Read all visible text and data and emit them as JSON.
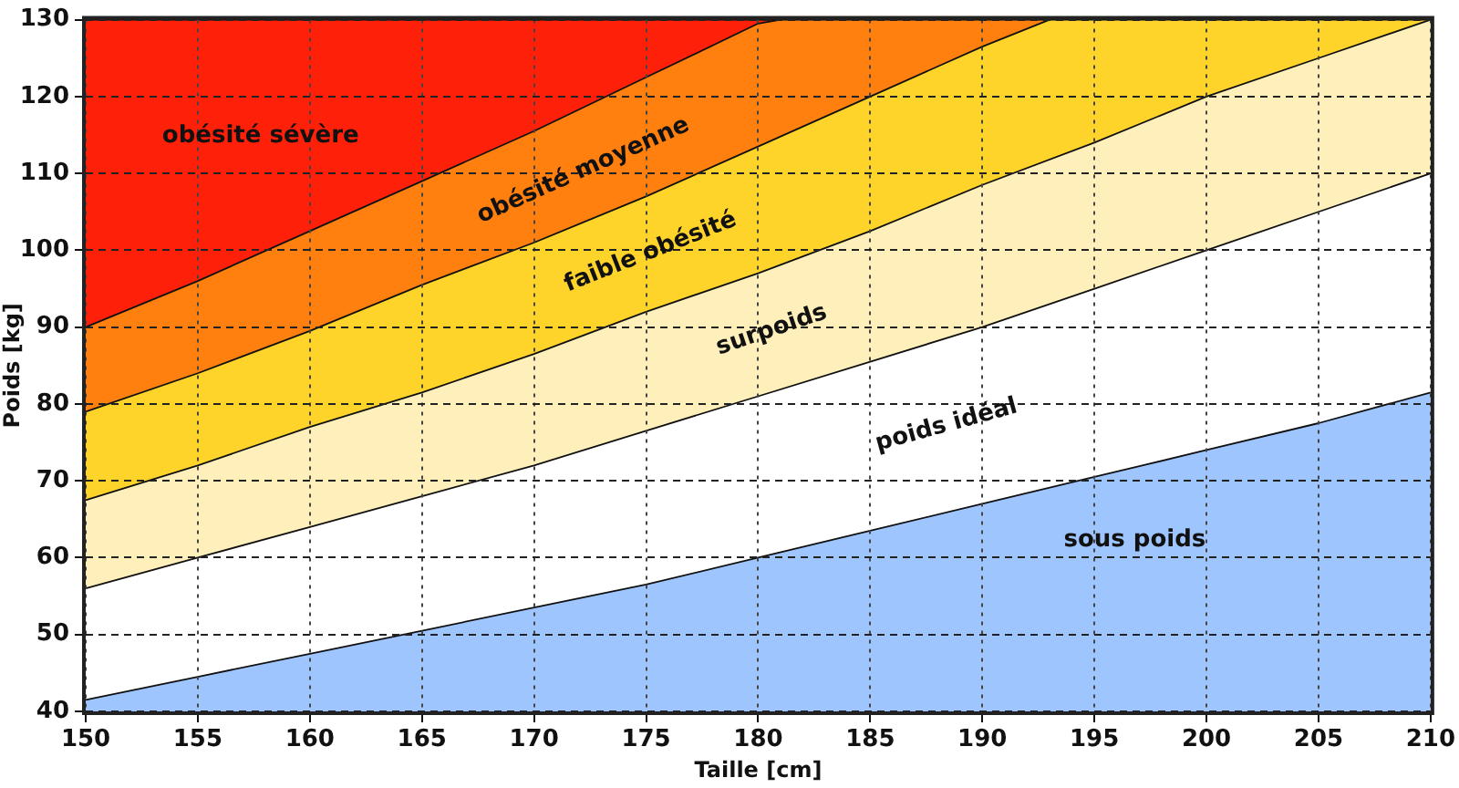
{
  "chart_data": {
    "type": "area",
    "xlabel": "Taille [cm]",
    "ylabel": "Poids [kg]",
    "xlim": [
      150,
      210
    ],
    "ylim": [
      40,
      130
    ],
    "xticks": [
      150,
      155,
      160,
      165,
      170,
      175,
      180,
      185,
      190,
      195,
      200,
      205,
      210
    ],
    "yticks": [
      40,
      50,
      60,
      70,
      80,
      90,
      100,
      110,
      120,
      130
    ],
    "grid": true,
    "series": [
      {
        "name": "sous poids",
        "color": "#9fc5ff",
        "x": [
          150,
          155,
          160,
          165,
          170,
          175,
          180,
          185,
          190,
          195,
          200,
          205,
          210
        ],
        "values": [
          41.5,
          44.5,
          47.5,
          50.5,
          53.5,
          56.5,
          60,
          63.5,
          67,
          70.5,
          74,
          77.5,
          81.5
        ]
      },
      {
        "name": "poids idéal",
        "color": "#ffffff",
        "x": [
          150,
          155,
          160,
          165,
          170,
          175,
          180,
          185,
          190,
          195,
          200,
          205,
          210
        ],
        "values": [
          56,
          60,
          64,
          68,
          72,
          76.5,
          81,
          85.5,
          90,
          95,
          100,
          105,
          110
        ]
      },
      {
        "name": "surpoids",
        "color": "#fff0bb",
        "x": [
          150,
          155,
          160,
          165,
          170,
          175,
          180,
          185,
          190,
          195,
          200,
          205,
          210
        ],
        "values": [
          67.5,
          72,
          77,
          81.5,
          86.5,
          92,
          97,
          102.5,
          108.5,
          114,
          120,
          125,
          130
        ]
      },
      {
        "name": "faible obésité",
        "color": "#ffd42a",
        "x": [
          150,
          155,
          160,
          165,
          170,
          175,
          180,
          185,
          190,
          193,
          195,
          200,
          205,
          210
        ],
        "values": [
          79,
          84,
          89.5,
          95.5,
          101,
          107,
          113.5,
          120,
          126.5,
          130,
          130,
          130,
          130,
          130
        ]
      },
      {
        "name": "obésité moyenne",
        "color": "#ff800e",
        "x": [
          150,
          155,
          160,
          165,
          170,
          175,
          180,
          181,
          185,
          190,
          193
        ],
        "values": [
          90,
          96,
          102.5,
          109,
          115.5,
          122.5,
          129.5,
          130,
          130,
          130,
          130
        ]
      },
      {
        "name": "obésité sévère",
        "color": "#ff200a",
        "x": [
          150,
          155,
          160,
          165,
          170,
          175,
          180,
          181
        ],
        "values": [
          130,
          130,
          130,
          130,
          130,
          130,
          130,
          130
        ]
      }
    ]
  }
}
